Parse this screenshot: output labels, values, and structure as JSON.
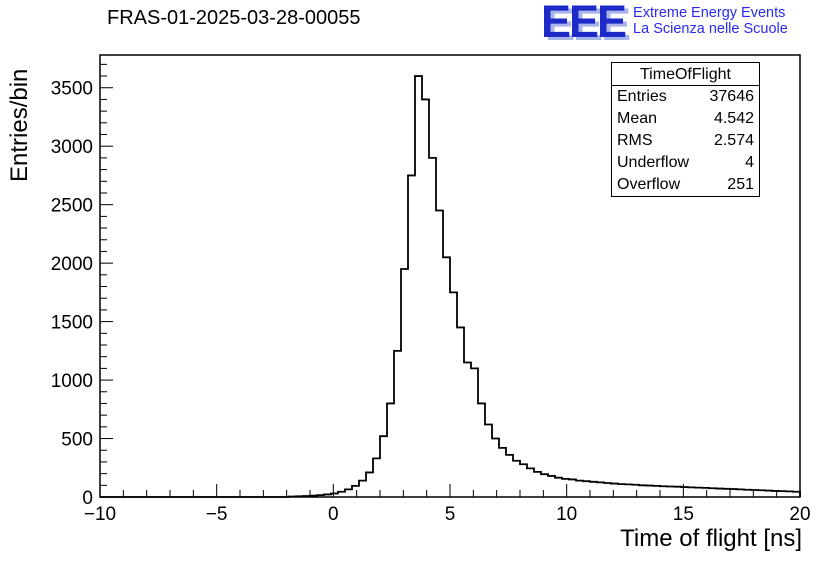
{
  "title": "FRAS-01-2025-03-28-00055",
  "logo": {
    "text": "EEE",
    "line1": "Extreme Energy Events",
    "line2": "La Scienza nelle Scuole",
    "color": "#1e2ac8",
    "text_color": "#2a2af0"
  },
  "stats": {
    "title": "TimeOfFlight",
    "rows": [
      {
        "label": "Entries",
        "value": "37646"
      },
      {
        "label": "Mean",
        "value": "4.542"
      },
      {
        "label": "RMS",
        "value": "2.574"
      },
      {
        "label": "Underflow",
        "value": "4"
      },
      {
        "label": "Overflow",
        "value": "251"
      }
    ]
  },
  "chart_data": {
    "type": "bar",
    "style": "step-histogram",
    "title": "FRAS-01-2025-03-28-00055",
    "xlabel": "Time of flight [ns]",
    "ylabel": "Entries/bin",
    "xlim": [
      -10,
      20
    ],
    "ylim": [
      0,
      3780
    ],
    "grid": false,
    "legend": false,
    "line_color": "#000000",
    "bin_start": -10,
    "bin_width": 0.3,
    "x_ticks": [
      {
        "v": -10,
        "label": "−10"
      },
      {
        "v": -5,
        "label": "−5"
      },
      {
        "v": 0,
        "label": "0"
      },
      {
        "v": 5,
        "label": "5"
      },
      {
        "v": 10,
        "label": "10"
      },
      {
        "v": 15,
        "label": "15"
      },
      {
        "v": 20,
        "label": "20"
      }
    ],
    "x_minor_step": 1,
    "y_ticks": [
      {
        "v": 0,
        "label": "0"
      },
      {
        "v": 500,
        "label": "500"
      },
      {
        "v": 1000,
        "label": "1000"
      },
      {
        "v": 1500,
        "label": "1500"
      },
      {
        "v": 2000,
        "label": "2000"
      },
      {
        "v": 2500,
        "label": "2500"
      },
      {
        "v": 3000,
        "label": "3000"
      },
      {
        "v": 3500,
        "label": "3500"
      }
    ],
    "y_minor_step": 100,
    "values": [
      0,
      0,
      0,
      0,
      0,
      0,
      0,
      0,
      0,
      0,
      0,
      0,
      0,
      0,
      0,
      0,
      0,
      0,
      0,
      0,
      0,
      0,
      0,
      0,
      0,
      0,
      0,
      4,
      6,
      8,
      12,
      16,
      22,
      30,
      45,
      65,
      95,
      140,
      210,
      330,
      520,
      800,
      1250,
      1950,
      2750,
      3600,
      3400,
      2900,
      2450,
      2050,
      1750,
      1450,
      1150,
      1100,
      800,
      620,
      500,
      420,
      360,
      310,
      280,
      245,
      215,
      195,
      180,
      165,
      155,
      150,
      140,
      135,
      130,
      125,
      120,
      115,
      110,
      108,
      105,
      100,
      98,
      95,
      92,
      90,
      88,
      85,
      82,
      80,
      78,
      75,
      72,
      70,
      68,
      65,
      62,
      60,
      58,
      55,
      52,
      50,
      48,
      45
    ]
  }
}
